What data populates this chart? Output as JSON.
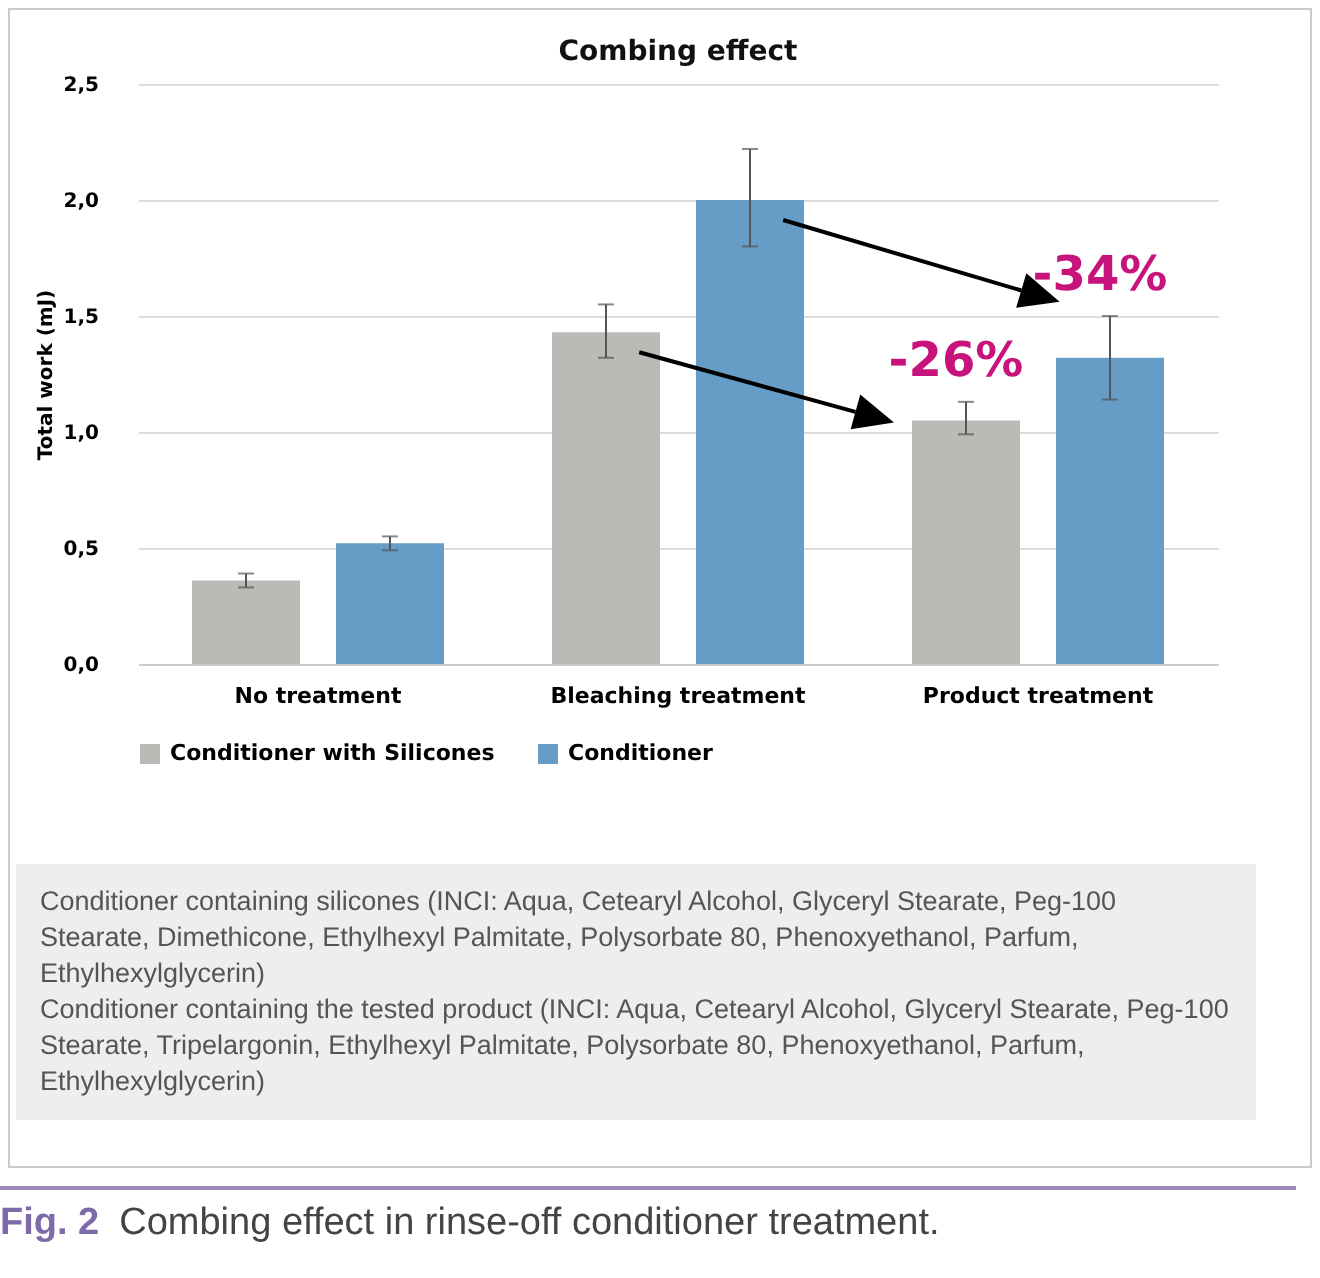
{
  "chart_data": {
    "type": "bar",
    "title": "Combing effect",
    "ylabel": "Total work (mJ)",
    "categories": [
      "No treatment",
      "Bleaching treatment",
      "Product treatment"
    ],
    "series": [
      {
        "name": "Conditioner with Silicones",
        "color": "#bcbab6",
        "values": [
          0.36,
          1.43,
          1.05
        ],
        "errors": [
          [
            0.33,
            0.39
          ],
          [
            1.32,
            1.55
          ],
          [
            0.99,
            1.13
          ]
        ]
      },
      {
        "name": "Conditioner",
        "color": "#659dc6",
        "values": [
          0.52,
          2.0,
          1.32
        ],
        "errors": [
          [
            0.49,
            0.55
          ],
          [
            1.8,
            2.22
          ],
          [
            1.14,
            1.5
          ]
        ]
      }
    ],
    "ylim": [
      0,
      2.5
    ],
    "yticks": [
      {
        "value": 0,
        "label": "0,0"
      },
      {
        "value": 0.5,
        "label": "0,5"
      },
      {
        "value": 1,
        "label": "1,0"
      },
      {
        "value": 1.5,
        "label": "1,5"
      },
      {
        "value": 2,
        "label": "2,0"
      },
      {
        "value": 2.5,
        "label": "2,5"
      }
    ],
    "grid": "y",
    "legend": "bottom",
    "annotations": [
      "-26%",
      "-34%",
      "Conditioner containing silicones (INCI: Aqua, Cetearyl Alcohol, Glyceryl Stearate, Peg-100 Stearate, Dimethicone, Ethylhexyl Palmitate, Polysorbate 80, Phenoxyethanol, Parfum, Ethylhexylglycerin)\nConditioner containing the tested product (INCI: Aqua, Cetearyl Alcohol, Glyceryl Stearate, Peg-100 Stearate, Tripelargonin, Ethylhexyl Palmitate, Polysorbate 80, Phenoxyethanol, Parfum, Ethylhexylglycerin)",
      "Fig. 2 Combing effect in rinse-off conditioner treatment."
    ]
  }
}
